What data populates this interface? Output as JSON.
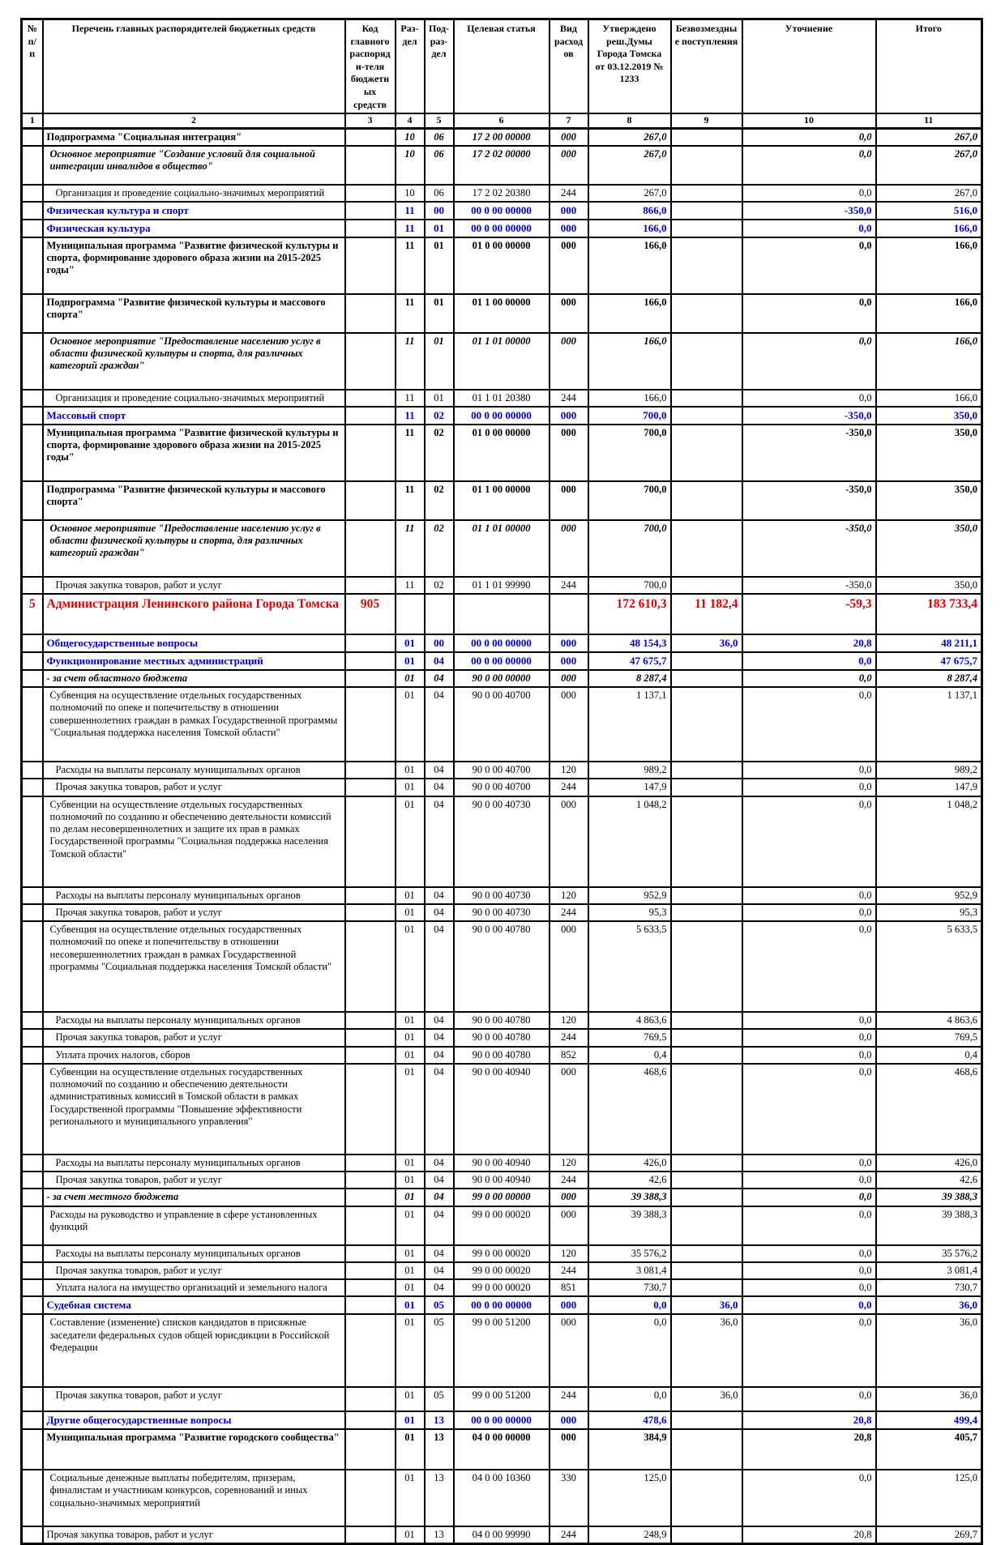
{
  "colors": {
    "section_blue": "#0000cd",
    "gra_red": "#e00000",
    "border": "#000000"
  },
  "table": {
    "header": [
      "№ п/п",
      "Перечень главных распорядителей бюджетных средств",
      "Код главного распоряди-теля бюджетных средств",
      "Раз-дел",
      "Под-раз-дел",
      "Целевая статья",
      "Вид расходов",
      "Утверждено реш.Думы Города Томска от 03.12.2019 № 1233",
      "Безвозмездные поступления",
      "Уточнение",
      "Итого"
    ],
    "column_numbers": [
      "1",
      "2",
      "3",
      "4",
      "5",
      "6",
      "7",
      "8",
      "9",
      "10",
      "11"
    ],
    "rows": [
      {
        "n": "",
        "name": "Подпрограмма \"Социальная интеграция\"",
        "code": "",
        "rd": "10",
        "pr": "06",
        "cs": "17 2 00 00000",
        "vr": "000",
        "v8": "267,0",
        "v9": "",
        "v10": "0,0",
        "v11": "267,0",
        "style": "bold",
        "ni": true
      },
      {
        "n": "",
        "name": "Основное мероприятие \"Создание условий для социальной интеграции инвалидов в общество\"",
        "code": "",
        "rd": "10",
        "pr": "06",
        "cs": "17 2 02 00000",
        "vr": "000",
        "v8": "267,0",
        "v9": "",
        "v10": "0,0",
        "v11": "267,0",
        "style": "bolditalic",
        "indent": 1,
        "mh": 48
      },
      {
        "n": "",
        "name": "Организация и проведение социально-значимых мероприятий",
        "code": "",
        "rd": "10",
        "pr": "06",
        "cs": "17 2 02 20380",
        "vr": "244",
        "v8": "267,0",
        "v9": "",
        "v10": "0,0",
        "v11": "267,0",
        "style": "normal",
        "indent": 2
      },
      {
        "n": "",
        "name": "Физическая культура и спорт",
        "code": "",
        "rd": "11",
        "pr": "00",
        "cs": "00 0 00 00000",
        "vr": "000",
        "v8": "866,0",
        "v9": "",
        "v10": "-350,0",
        "v11": "516,0",
        "style": "blue"
      },
      {
        "n": "",
        "name": "Физическая культура",
        "code": "",
        "rd": "11",
        "pr": "01",
        "cs": "00 0 00 00000",
        "vr": "000",
        "v8": "166,0",
        "v9": "",
        "v10": "0,0",
        "v11": "166,0",
        "style": "blue"
      },
      {
        "n": "",
        "name": "Муниципальная программа \"Развитие физической культуры и спорта, формирование здорового образа жизни на 2015-2025 годы\"",
        "code": "",
        "rd": "11",
        "pr": "01",
        "cs": "01 0 00 00000",
        "vr": "000",
        "v8": "166,0",
        "v9": "",
        "v10": "0,0",
        "v11": "166,0",
        "style": "bold",
        "mh": 70
      },
      {
        "n": "",
        "name": "Подпрограмма \"Развитие физической культуры и массового спорта\"",
        "code": "",
        "rd": "11",
        "pr": "01",
        "cs": "01 1 00 00000",
        "vr": "000",
        "v8": "166,0",
        "v9": "",
        "v10": "0,0",
        "v11": "166,0",
        "style": "bold",
        "mh": 48
      },
      {
        "n": "",
        "name": "Основное мероприятие \"Предоставление населению услуг в области физической культуры и спорта, для различных категорий граждан\"",
        "code": "",
        "rd": "11",
        "pr": "01",
        "cs": "01 1 01 00000",
        "vr": "000",
        "v8": "166,0",
        "v9": "",
        "v10": "0,0",
        "v11": "166,0",
        "style": "bolditalic",
        "indent": 1,
        "mh": 70
      },
      {
        "n": "",
        "name": "Организация и проведение социально-значимых мероприятий",
        "code": "",
        "rd": "11",
        "pr": "01",
        "cs": "01 1 01 20380",
        "vr": "244",
        "v8": "166,0",
        "v9": "",
        "v10": "0,0",
        "v11": "166,0",
        "style": "normal",
        "indent": 2
      },
      {
        "n": "",
        "name": "Массовый спорт",
        "code": "",
        "rd": "11",
        "pr": "02",
        "cs": "00 0 00 00000",
        "vr": "000",
        "v8": "700,0",
        "v9": "",
        "v10": "-350,0",
        "v11": "350,0",
        "style": "blue"
      },
      {
        "n": "",
        "name": "Муниципальная программа \"Развитие физической культуры и спорта, формирование здорового образа жизни на 2015-2025 годы\"",
        "code": "",
        "rd": "11",
        "pr": "02",
        "cs": "01 0 00 00000",
        "vr": "000",
        "v8": "700,0",
        "v9": "",
        "v10": "-350,0",
        "v11": "350,0",
        "style": "bold",
        "mh": 70
      },
      {
        "n": "",
        "name": "Подпрограмма \"Развитие физической культуры и массового спорта\"",
        "code": "",
        "rd": "11",
        "pr": "02",
        "cs": "01 1 00 00000",
        "vr": "000",
        "v8": "700,0",
        "v9": "",
        "v10": "-350,0",
        "v11": "350,0",
        "style": "bold",
        "mh": 48
      },
      {
        "n": "",
        "name": "Основное мероприятие \"Предоставление населению услуг в области физической культуры и спорта, для различных категорий граждан\"",
        "code": "",
        "rd": "11",
        "pr": "02",
        "cs": "01 1 01 00000",
        "vr": "000",
        "v8": "700,0",
        "v9": "",
        "v10": "-350,0",
        "v11": "350,0",
        "style": "bolditalic",
        "indent": 1,
        "mh": 70
      },
      {
        "n": "",
        "name": "Прочая закупка товаров, работ и услуг",
        "code": "",
        "rd": "11",
        "pr": "02",
        "cs": "01 1 01 99990",
        "vr": "244",
        "v8": "700,0",
        "v9": "",
        "v10": "-350,0",
        "v11": "350,0",
        "style": "normal",
        "indent": 2
      },
      {
        "n": "5",
        "name": "Администрация Ленинского района Города Томска",
        "code": "905",
        "rd": "",
        "pr": "",
        "cs": "",
        "vr": "",
        "v8": "172 610,3",
        "v9": "11 182,4",
        "v10": "-59,3",
        "v11": "183 733,4",
        "style": "red",
        "mh": 50
      },
      {
        "n": "",
        "name": "Общегосударственные вопросы",
        "code": "",
        "rd": "01",
        "pr": "00",
        "cs": "00 0 00 00000",
        "vr": "000",
        "v8": "48 154,3",
        "v9": "36,0",
        "v10": "20,8",
        "v11": "48 211,1",
        "style": "blue"
      },
      {
        "n": "",
        "name": "Функционирование местных администраций",
        "code": "",
        "rd": "01",
        "pr": "04",
        "cs": "00 0 00 00000",
        "vr": "000",
        "v8": "47 675,7",
        "v9": "",
        "v10": "0,0",
        "v11": "47 675,7",
        "style": "blue"
      },
      {
        "n": "",
        "name": "- за счет областного бюджета",
        "code": "",
        "rd": "01",
        "pr": "04",
        "cs": "90 0 00 00000",
        "vr": "000",
        "v8": "8 287,4",
        "v9": "",
        "v10": "0,0",
        "v11": "8 287,4",
        "style": "bolditalic"
      },
      {
        "n": "",
        "name": "Субвенция на осуществление отдельных государственных полномочий по опеке и попечительству в отношении совершеннолетних граждан в рамках Государственной программы \"Социальная поддержка населения Томской области\"",
        "code": "",
        "rd": "01",
        "pr": "04",
        "cs": "90 0 00 40700",
        "vr": "000",
        "v8": "1 137,1",
        "v9": "",
        "v10": "0,0",
        "v11": "1 137,1",
        "style": "normal",
        "indent": 1,
        "mh": 92
      },
      {
        "n": "",
        "name": "Расходы на выплаты персоналу муниципальных органов",
        "code": "",
        "rd": "01",
        "pr": "04",
        "cs": "90 0 00 40700",
        "vr": "120",
        "v8": "989,2",
        "v9": "",
        "v10": "0,0",
        "v11": "989,2",
        "style": "normal",
        "indent": 2
      },
      {
        "n": "",
        "name": "Прочая закупка товаров, работ и услуг",
        "code": "",
        "rd": "01",
        "pr": "04",
        "cs": "90 0 00 40700",
        "vr": "244",
        "v8": "147,9",
        "v9": "",
        "v10": "0,0",
        "v11": "147,9",
        "style": "normal",
        "indent": 2
      },
      {
        "n": "",
        "name": "Субвенции на осуществление отдельных государственных полномочий по созданию и обеспечению деятельности комиссий по делам несовершеннолетних и защите их прав в рамках Государственной программы \"Социальная поддержка населения Томской области\"",
        "code": "",
        "rd": "01",
        "pr": "04",
        "cs": "90 0 00 40730",
        "vr": "000",
        "v8": "1 048,2",
        "v9": "",
        "v10": "0,0",
        "v11": "1 048,2",
        "style": "normal",
        "indent": 1,
        "mh": 112
      },
      {
        "n": "",
        "name": "Расходы на выплаты персоналу муниципальных органов",
        "code": "",
        "rd": "01",
        "pr": "04",
        "cs": "90 0 00 40730",
        "vr": "120",
        "v8": "952,9",
        "v9": "",
        "v10": "0,0",
        "v11": "952,9",
        "style": "normal",
        "indent": 2
      },
      {
        "n": "",
        "name": "Прочая закупка товаров, работ и услуг",
        "code": "",
        "rd": "01",
        "pr": "04",
        "cs": "90 0 00 40730",
        "vr": "244",
        "v8": "95,3",
        "v9": "",
        "v10": "0,0",
        "v11": "95,3",
        "style": "normal",
        "indent": 2
      },
      {
        "n": "",
        "name": "Субвенция на осуществление отдельных государственных полномочий по опеке и попечительству в отношении несовершеннолетних граждан в рамках Государственной программы \"Социальная поддержка населения Томской области\"",
        "code": "",
        "rd": "01",
        "pr": "04",
        "cs": "90 0 00 40780",
        "vr": "000",
        "v8": "5 633,5",
        "v9": "",
        "v10": "0,0",
        "v11": "5 633,5",
        "style": "normal",
        "indent": 1,
        "mh": 112
      },
      {
        "n": "",
        "name": "Расходы на выплаты персоналу муниципальных органов",
        "code": "",
        "rd": "01",
        "pr": "04",
        "cs": "90 0 00 40780",
        "vr": "120",
        "v8": "4 863,6",
        "v9": "",
        "v10": "0,0",
        "v11": "4 863,6",
        "style": "normal",
        "indent": 2
      },
      {
        "n": "",
        "name": "Прочая закупка товаров, работ и услуг",
        "code": "",
        "rd": "01",
        "pr": "04",
        "cs": "90 0 00 40780",
        "vr": "244",
        "v8": "769,5",
        "v9": "",
        "v10": "0,0",
        "v11": "769,5",
        "style": "normal",
        "indent": 2
      },
      {
        "n": "",
        "name": "Уплата прочих налогов, сборов",
        "code": "",
        "rd": "01",
        "pr": "04",
        "cs": "90 0 00 40780",
        "vr": "852",
        "v8": "0,4",
        "v9": "",
        "v10": "0,0",
        "v11": "0,4",
        "style": "normal",
        "indent": 2
      },
      {
        "n": "",
        "name": "Субвенции на осуществление отдельных государственных полномочий по созданию и обеспечению деятельности административных комиссий в Томской области в рамках Государственной программы \"Повышение эффективности регионального и муниципального управления\"",
        "code": "",
        "rd": "01",
        "pr": "04",
        "cs": "90 0 00 40940",
        "vr": "000",
        "v8": "468,6",
        "v9": "",
        "v10": "0,0",
        "v11": "468,6",
        "style": "normal",
        "indent": 1,
        "mh": 112
      },
      {
        "n": "",
        "name": "Расходы на выплаты персоналу муниципальных органов",
        "code": "",
        "rd": "01",
        "pr": "04",
        "cs": "90 0 00 40940",
        "vr": "120",
        "v8": "426,0",
        "v9": "",
        "v10": "0,0",
        "v11": "426,0",
        "style": "normal",
        "indent": 2
      },
      {
        "n": "",
        "name": "Прочая закупка товаров, работ и услуг",
        "code": "",
        "rd": "01",
        "pr": "04",
        "cs": "90 0 00 40940",
        "vr": "244",
        "v8": "42,6",
        "v9": "",
        "v10": "0,0",
        "v11": "42,6",
        "style": "normal",
        "indent": 2
      },
      {
        "n": "",
        "name": "- за счет местного бюджета",
        "code": "",
        "rd": "01",
        "pr": "04",
        "cs": "99 0 00 00000",
        "vr": "000",
        "v8": "39 388,3",
        "v9": "",
        "v10": "0,0",
        "v11": "39 388,3",
        "style": "bolditalic"
      },
      {
        "n": "",
        "name": "Расходы на руководство и управление в сфере установленных функций",
        "code": "",
        "rd": "01",
        "pr": "04",
        "cs": "99 0 00 00020",
        "vr": "000",
        "v8": "39 388,3",
        "v9": "",
        "v10": "0,0",
        "v11": "39 388,3",
        "style": "normal",
        "indent": 1,
        "mh": 48
      },
      {
        "n": "",
        "name": "Расходы на выплаты персоналу муниципальных органов",
        "code": "",
        "rd": "01",
        "pr": "04",
        "cs": "99 0 00 00020",
        "vr": "120",
        "v8": "35 576,2",
        "v9": "",
        "v10": "0,0",
        "v11": "35 576,2",
        "style": "normal",
        "indent": 2
      },
      {
        "n": "",
        "name": "Прочая закупка товаров, работ и услуг",
        "code": "",
        "rd": "01",
        "pr": "04",
        "cs": "99 0 00 00020",
        "vr": "244",
        "v8": "3 081,4",
        "v9": "",
        "v10": "0,0",
        "v11": "3 081,4",
        "style": "normal",
        "indent": 2
      },
      {
        "n": "",
        "name": "Уплата налога на имущество организаций и земельного налога",
        "code": "",
        "rd": "01",
        "pr": "04",
        "cs": "99 0 00 00020",
        "vr": "851",
        "v8": "730,7",
        "v9": "",
        "v10": "0,0",
        "v11": "730,7",
        "style": "normal",
        "indent": 2
      },
      {
        "n": "",
        "name": "Судебная система",
        "code": "",
        "rd": "01",
        "pr": "05",
        "cs": "00 0 00 00000",
        "vr": "000",
        "v8": "0,0",
        "v9": "36,0",
        "v10": "0,0",
        "v11": "36,0",
        "style": "blue"
      },
      {
        "n": "",
        "name": "Составление (изменение) списков кандидатов в присяжные заседатели федеральных судов общей юрисдикции в Российской Федерации",
        "code": "",
        "rd": "01",
        "pr": "05",
        "cs": "99 0 00 51200",
        "vr": "000",
        "v8": "0,0",
        "v9": "36,0",
        "v10": "0,0",
        "v11": "36,0",
        "style": "normal",
        "indent": 1,
        "mh": 90
      },
      {
        "n": "",
        "name": "Прочая закупка товаров, работ и услуг",
        "code": "",
        "rd": "01",
        "pr": "05",
        "cs": "99 0 00 51200",
        "vr": "244",
        "v8": "0,0",
        "v9": "36,0",
        "v10": "0,0",
        "v11": "36,0",
        "style": "normal",
        "indent": 2,
        "mh": 30
      },
      {
        "n": "",
        "name": "Другие общегосударственные вопросы",
        "code": "",
        "rd": "01",
        "pr": "13",
        "cs": "00 0 00 00000",
        "vr": "000",
        "v8": "478,6",
        "v9": "",
        "v10": "20,8",
        "v11": "499,4",
        "style": "blue"
      },
      {
        "n": "",
        "name": "Муниципальная программа \"Развитие городского сообщества\"",
        "code": "",
        "rd": "01",
        "pr": "13",
        "cs": "04 0 00 00000",
        "vr": "000",
        "v8": "384,9",
        "v9": "",
        "v10": "20,8",
        "v11": "405,7",
        "style": "bold",
        "mh": 50
      },
      {
        "n": "",
        "name": "Социальные денежные выплаты победителям, призерам, финалистам и участникам конкурсов, соревнований и иных социально-значимых мероприятий",
        "code": "",
        "rd": "01",
        "pr": "13",
        "cs": "04 0 00 10360",
        "vr": "330",
        "v8": "125,0",
        "v9": "",
        "v10": "0,0",
        "v11": "125,0",
        "style": "normal",
        "indent": 1,
        "mh": 70
      },
      {
        "n": "",
        "name": "Прочая закупка товаров, работ и услуг",
        "code": "",
        "rd": "01",
        "pr": "13",
        "cs": "04 0 00 99990",
        "vr": "244",
        "v8": "248,9",
        "v9": "",
        "v10": "20,8",
        "v11": "269,7",
        "style": "normal"
      }
    ]
  }
}
